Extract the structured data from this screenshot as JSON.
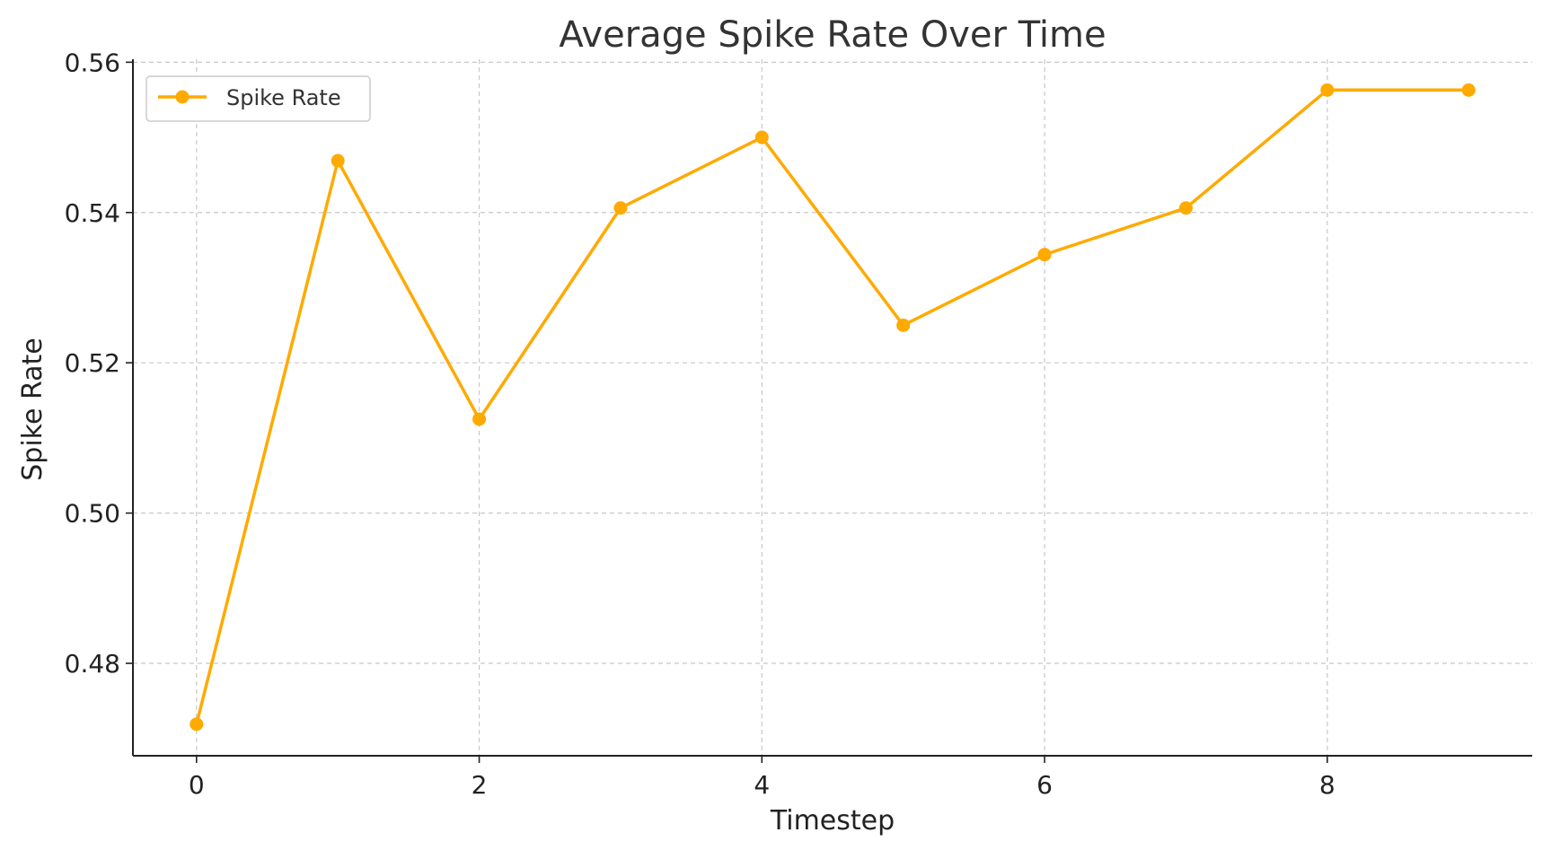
{
  "chart_data": {
    "type": "line",
    "title": "Average Spike Rate Over Time",
    "xlabel": "Timestep",
    "ylabel": "Spike Rate",
    "x": [
      0,
      1,
      2,
      3,
      4,
      5,
      6,
      7,
      8,
      9
    ],
    "series": [
      {
        "name": "Spike Rate",
        "color": "#FFAA00",
        "values": [
          0.4719,
          0.5469,
          0.5125,
          0.5406,
          0.55,
          0.525,
          0.5344,
          0.5406,
          0.5563,
          0.5563
        ]
      }
    ],
    "xlim": [
      -0.45,
      9.45
    ],
    "ylim": [
      0.4677,
      0.5604
    ],
    "xticks": [
      0,
      2,
      4,
      6,
      8
    ],
    "xtick_labels": [
      "0",
      "2",
      "4",
      "6",
      "8"
    ],
    "yticks": [
      0.48,
      0.5,
      0.52,
      0.54,
      0.56
    ],
    "ytick_labels": [
      "0.48",
      "0.50",
      "0.52",
      "0.54",
      "0.56"
    ],
    "grid": true,
    "legend": "top-left"
  }
}
